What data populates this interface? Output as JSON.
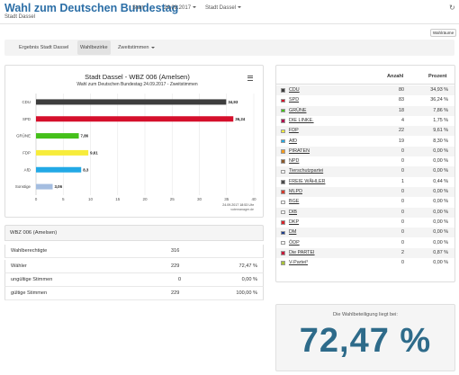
{
  "header": {
    "title": "Wahl zum Deutschen Bundestag",
    "subtitle": "Stadt Dassel",
    "nav_start": "Start",
    "nav_date": "24.09.2017",
    "nav_place": "Stadt Dassel"
  },
  "toolbar": {
    "wahlraeume_label": "Wahlräume"
  },
  "tabs": [
    {
      "label": "Ergebnis Stadt Dassel",
      "active": false
    },
    {
      "label": "Wahlbezirke",
      "active": true
    },
    {
      "label": "Zweitstimmen",
      "active": false
    }
  ],
  "chart": {
    "title": "Stadt Dassel - WBZ 006 (Amelsen)",
    "subtitle": "Wahl zum Deutschen Bundestag 24.09.2017 - Zweitstimmen",
    "credit_line1": "24.09.2017 18:53 Uhr",
    "credit_line2": "votemanager.de"
  },
  "chart_data": {
    "type": "bar",
    "orientation": "horizontal",
    "categories": [
      "CDU",
      "SPD",
      "GRÜNE",
      "FDP",
      "AfD",
      "Sonstige"
    ],
    "values": [
      34.93,
      36.24,
      7.86,
      9.61,
      8.3,
      3.06
    ],
    "value_labels": [
      "34,93",
      "36,24",
      "7,86",
      "9,61",
      "8,3",
      "3,06"
    ],
    "colors": [
      "#3d3d3d",
      "#d50f2b",
      "#45c01a",
      "#f7ec3b",
      "#22a9e6",
      "#a4bde0"
    ],
    "xlim": [
      0,
      40
    ],
    "xticks": [
      0,
      5,
      10,
      15,
      20,
      25,
      30,
      35,
      40
    ],
    "grid": true
  },
  "wbz": {
    "title": "WBZ 006 (Amelsen)",
    "rows": [
      {
        "label": "Wahlberechtigte",
        "count": "316",
        "percent": ""
      },
      {
        "label": "Wähler",
        "count": "229",
        "percent": "72,47 %"
      },
      {
        "label": "ungültige Stimmen",
        "count": "0",
        "percent": "0,00 %"
      },
      {
        "label": "gültige Stimmen",
        "count": "229",
        "percent": "100,00 %"
      }
    ]
  },
  "results": {
    "col_anzahl": "Anzahl",
    "col_prozent": "Prozent",
    "rows": [
      {
        "party": "CDU",
        "count": "80",
        "percent": "34,93 %",
        "color": "#3d3d3d"
      },
      {
        "party": "SPD",
        "count": "83",
        "percent": "36,24 %",
        "color": "#d50f2b"
      },
      {
        "party": "GRÜNE",
        "count": "18",
        "percent": "7,86 %",
        "color": "#45c01a"
      },
      {
        "party": "DIE LINKE.",
        "count": "4",
        "percent": "1,75 %",
        "color": "#b0124f"
      },
      {
        "party": "FDP",
        "count": "22",
        "percent": "9,61 %",
        "color": "#f7ec3b"
      },
      {
        "party": "AfD",
        "count": "19",
        "percent": "8,30 %",
        "color": "#22a9e6"
      },
      {
        "party": "PIRATEN",
        "count": "0",
        "percent": "0,00 %",
        "color": "#f39a1e"
      },
      {
        "party": "NPD",
        "count": "0",
        "percent": "0,00 %",
        "color": "#8b5a2b"
      },
      {
        "party": "Tierschutzpartei",
        "count": "0",
        "percent": "0,00 %",
        "color": "#ffffff"
      },
      {
        "party": "FREIE WÄHLER",
        "count": "1",
        "percent": "0,44 %",
        "color": "#4a4a4a"
      },
      {
        "party": "MLPD",
        "count": "0",
        "percent": "0,00 %",
        "color": "#d23a2c"
      },
      {
        "party": "BGE",
        "count": "0",
        "percent": "0,00 %",
        "color": "#ffffff"
      },
      {
        "party": "DIB",
        "count": "0",
        "percent": "0,00 %",
        "color": "#ffffff"
      },
      {
        "party": "DKP",
        "count": "0",
        "percent": "0,00 %",
        "color": "#d8232a"
      },
      {
        "party": "DM",
        "count": "0",
        "percent": "0,00 %",
        "color": "#1d3e8f"
      },
      {
        "party": "ÖDP",
        "count": "0",
        "percent": "0,00 %",
        "color": "#ffffff"
      },
      {
        "party": "Die PARTEI",
        "count": "2",
        "percent": "0,87 %",
        "color": "#c7183a"
      },
      {
        "party": "V-Partei³",
        "count": "0",
        "percent": "0,00 %",
        "color": "#a8c23a"
      }
    ]
  },
  "turnout": {
    "label": "Die Wahlbeteiligung liegt bei:",
    "value": "72,47 %"
  }
}
